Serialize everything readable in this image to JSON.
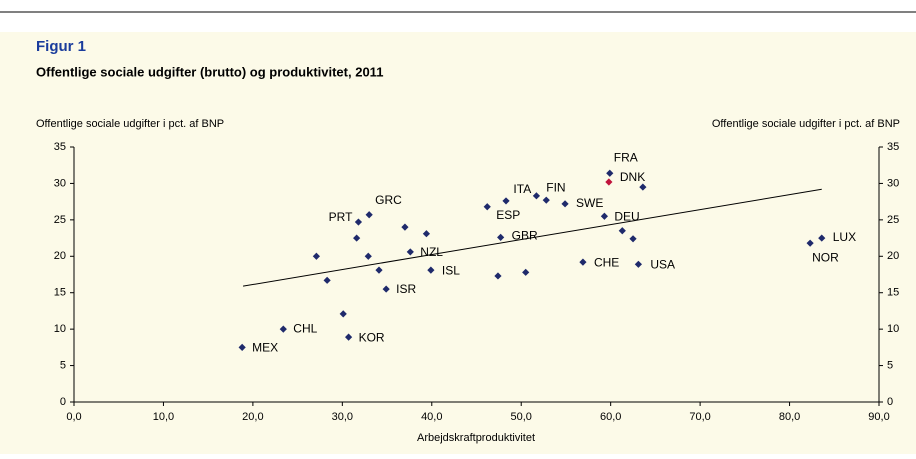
{
  "chart_data": {
    "type": "scatter",
    "figure_label": "Figur 1",
    "title": "Offentlige sociale udgifter (brutto) og produktivitet, 2011",
    "y_label": "Offentlige sociale udgifter i pct. af BNP",
    "y2_label": "Offentlige sociale udgifter i pct. af BNP",
    "x_label": "Arbejdskraftproduktivitet",
    "x": [
      18.8,
      23.4,
      30.7,
      30.1,
      28.3,
      27.1,
      34.9,
      34.1,
      39.9,
      37.6,
      32.9,
      31.6,
      31.8,
      33.0,
      37.0,
      39.4,
      46.2,
      48.3,
      51.7,
      52.8,
      47.7,
      47.4,
      50.5,
      54.9,
      59.9,
      63.6,
      59.8,
      59.3,
      61.3,
      62.5,
      56.9,
      63.1,
      82.3,
      83.6
    ],
    "values": [
      7.5,
      10.0,
      8.9,
      12.1,
      16.7,
      20.0,
      15.5,
      18.1,
      18.1,
      20.6,
      20.0,
      22.5,
      24.7,
      25.7,
      24.0,
      23.1,
      26.8,
      27.6,
      28.3,
      27.7,
      22.6,
      17.3,
      17.8,
      27.2,
      31.4,
      29.5,
      30.2,
      25.5,
      23.5,
      22.4,
      19.2,
      18.9,
      21.8,
      22.5
    ],
    "labels": [
      "MEX",
      "CHL",
      "KOR",
      null,
      null,
      null,
      "ISR",
      null,
      "ISL",
      "NZL",
      null,
      null,
      "PRT",
      "GRC",
      null,
      null,
      "ESP",
      null,
      "ITA",
      "FIN",
      "GBR",
      null,
      null,
      "SWE",
      "FRA",
      null,
      "DNK",
      "DEU",
      null,
      null,
      "CHE",
      "USA",
      "NOR",
      "LUX"
    ],
    "color": "#1f2a6b",
    "point_colors": [
      "#1f2a6b",
      "#1f2a6b",
      "#1f2a6b",
      "#1f2a6b",
      "#1f2a6b",
      "#1f2a6b",
      "#1f2a6b",
      "#1f2a6b",
      "#1f2a6b",
      "#1f2a6b",
      "#1f2a6b",
      "#1f2a6b",
      "#1f2a6b",
      "#1f2a6b",
      "#1f2a6b",
      "#1f2a6b",
      "#1f2a6b",
      "#1f2a6b",
      "#1f2a6b",
      "#1f2a6b",
      "#1f2a6b",
      "#1f2a6b",
      "#1f2a6b",
      "#1f2a6b",
      "#1f2a6b",
      "#1f2a6b",
      "#c0143c",
      "#1f2a6b",
      "#1f2a6b",
      "#1f2a6b",
      "#1f2a6b",
      "#1f2a6b",
      "#1f2a6b",
      "#1f2a6b"
    ],
    "trendline": {
      "x": [
        18.9,
        83.6
      ],
      "values": [
        15.9,
        29.2
      ]
    },
    "xlim": [
      0,
      90
    ],
    "xticks": [
      {
        "value": 0,
        "label": "0,0"
      },
      {
        "value": 10,
        "label": "10,0"
      },
      {
        "value": 20,
        "label": "20,0"
      },
      {
        "value": 30,
        "label": "30,0"
      },
      {
        "value": 40,
        "label": "40,0"
      },
      {
        "value": 50,
        "label": "50,0"
      },
      {
        "value": 60,
        "label": "60,0"
      },
      {
        "value": 70,
        "label": "70,0"
      },
      {
        "value": 80,
        "label": "80,0"
      },
      {
        "value": 90,
        "label": "90,0"
      }
    ],
    "ylim": [
      0,
      35
    ],
    "yticks": [
      0,
      5,
      10,
      15,
      20,
      25,
      30,
      35
    ],
    "y2lim": [
      0,
      35
    ],
    "y2ticks": [
      0,
      5,
      10,
      15,
      20,
      25,
      30,
      35
    ],
    "grid": false
  }
}
